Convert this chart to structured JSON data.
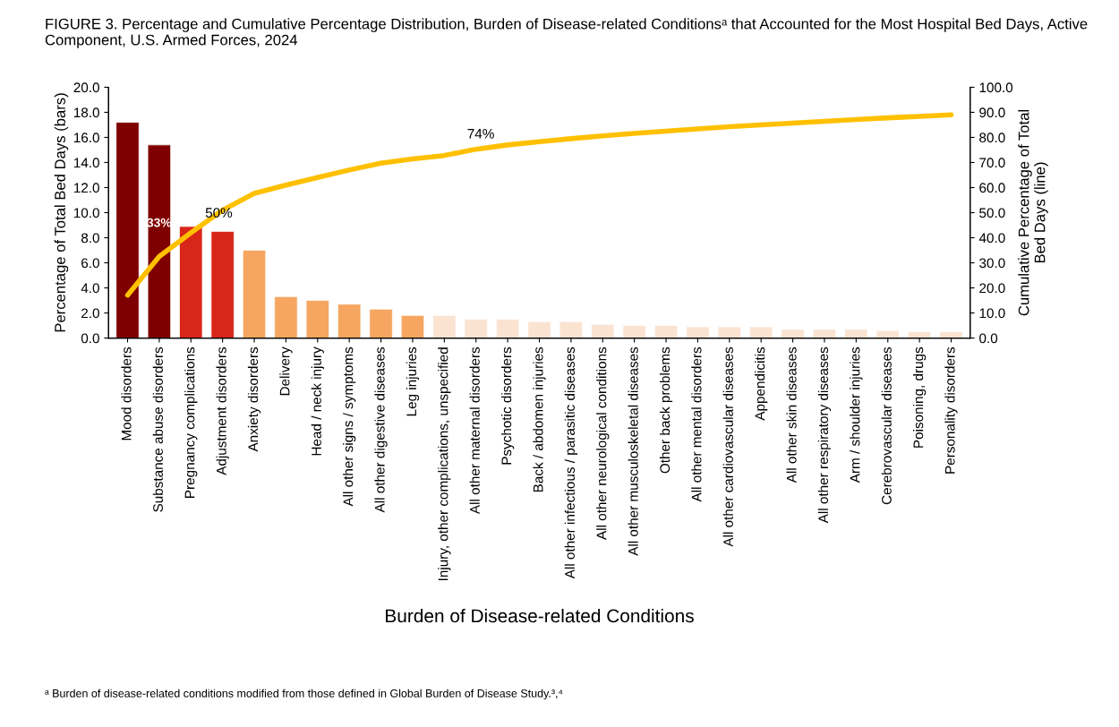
{
  "chart_data": {
    "type": "bar",
    "title": "FIGURE 3. Percentage and Cumulative Percentage Distribution, Burden of Disease-related Conditionsᵃ that Accounted for the Most Hospital Bed Days, Active Component, U.S. Armed Forces, 2024",
    "xlabel": "Burden of Disease-related Conditions",
    "ylabel": "Percentage of Total Bed Days (bars)",
    "y2label": "Cumulative Percentage of Total\nBed Days (line)",
    "categories": [
      "Mood disorders",
      "Substance abuse disorders",
      "Pregnancy complications",
      "Adjustment disorders",
      "Anxiety disorders",
      "Delivery",
      "Head / neck injury",
      "All other signs / symptoms",
      "All other digestive diseases",
      "Leg injuries",
      "Injury, other complications, unspecified",
      "All other maternal disorders",
      "Psychotic disorders",
      "Back / abdomen injuries",
      "All other infectious / parasitic diseases",
      "All other neurological conditions",
      "All other musculoskeletal diseases",
      "Other back problems",
      "All other mental disorders",
      "All other cardiovascular diseases",
      "Appendicitis",
      "All other skin diseases",
      "All other respiratory diseases",
      "Arm / shoulder injuries",
      "Cerebrovascular diseases",
      "Poisoning, drugs",
      "Personality disorders"
    ],
    "series": [
      {
        "colors": [
          "#7f0000",
          "#7f0000",
          "#d8261a",
          "#d8261a",
          "#f6a660",
          "#f6a660",
          "#f6a660",
          "#f6a660",
          "#f6a660",
          "#f6a660",
          "#fbe3d2",
          "#fbe3d2",
          "#fbe3d2",
          "#fbe3d2",
          "#fbe3d2",
          "#fbe3d2",
          "#fbe3d2",
          "#fbe3d2",
          "#fbe3d2",
          "#fbe3d2",
          "#fbe3d2",
          "#fbe3d2",
          "#fbe3d2",
          "#fbe3d2",
          "#fbe3d2",
          "#fbe3d2",
          "#fbe3d2"
        ],
        "values": [
          17.2,
          15.4,
          8.9,
          8.5,
          7.0,
          3.3,
          3.0,
          2.7,
          2.3,
          1.8,
          1.8,
          1.5,
          1.5,
          1.3,
          1.3,
          1.1,
          1.0,
          1.0,
          0.9,
          0.9,
          0.9,
          0.7,
          0.7,
          0.7,
          0.6,
          0.5,
          0.5
        ]
      },
      {
        "type": "line",
        "axis": "y2",
        "color": "#ffc000",
        "values": [
          17.1,
          32.5,
          42.0,
          51.0,
          57.7,
          61.0,
          64.0,
          67.0,
          69.7,
          71.4,
          72.8,
          75.3,
          77.0,
          78.3,
          79.5,
          80.6,
          81.6,
          82.5,
          83.4,
          84.3,
          85.0,
          85.7,
          86.4,
          87.1,
          87.8,
          88.4,
          89.0
        ]
      }
    ],
    "ylim": [
      0,
      20
    ],
    "yticks": [
      {
        "value": 0,
        "label": "0.0"
      },
      {
        "value": 2,
        "label": "2.0"
      },
      {
        "value": 4,
        "label": "4.0"
      },
      {
        "value": 6,
        "label": "6.0"
      },
      {
        "value": 8,
        "label": "8.0"
      },
      {
        "value": 10,
        "label": "10.0"
      },
      {
        "value": 12,
        "label": "12.0"
      },
      {
        "value": 14,
        "label": "14.0"
      },
      {
        "value": 16,
        "label": "16.0"
      },
      {
        "value": 18,
        "label": "18.0"
      },
      {
        "value": 20,
        "label": "20.0"
      }
    ],
    "y2lim": [
      0,
      100
    ],
    "y2ticks": [
      {
        "value": 0,
        "label": "0.0"
      },
      {
        "value": 10,
        "label": "10.0"
      },
      {
        "value": 20,
        "label": "20.0"
      },
      {
        "value": 30,
        "label": "30.0"
      },
      {
        "value": 40,
        "label": "40.0"
      },
      {
        "value": 50,
        "label": "50.0"
      },
      {
        "value": 60,
        "label": "60.0"
      },
      {
        "value": 70,
        "label": "70.0"
      },
      {
        "value": 80,
        "label": "80.0"
      },
      {
        "value": 90,
        "label": "90.0"
      },
      {
        "value": 100,
        "label": "100.0"
      }
    ],
    "annotations": [
      "33%",
      "50%",
      "74%",
      "ᵃ Burden of disease-related conditions modified from those defined in Global Burden of Disease Study.³,⁴"
    ],
    "grid": false
  }
}
